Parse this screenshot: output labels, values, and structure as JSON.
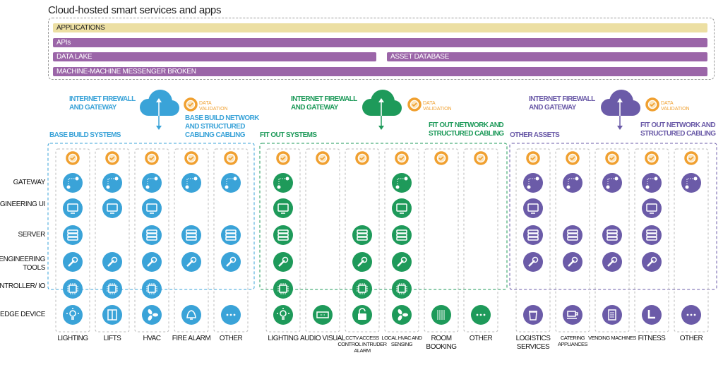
{
  "title": "Cloud-hosted smart services and apps",
  "bars": {
    "applications": "APPLICATIONS",
    "apis": "APIs",
    "data_lake": "DATA LAKE",
    "asset_database": "ASSET DATABASE",
    "messenger": "MACHINE-MACHINE MESSENGER BROKEN"
  },
  "colors": {
    "blue": "#3aa3d8",
    "green": "#1e9a5a",
    "purple": "#6b5ba8",
    "validation": "#f0a030",
    "applications_bar": "#ecdfa3",
    "platform_bar": "#9b65a8"
  },
  "data_validation": "DATA VALIDATION",
  "row_labels": [
    "GATEWAY",
    "ENGINEERING UI",
    "SERVER",
    "ENGINEERING TOOLS",
    "CONTROLLER/ IO",
    "EDGE DEVICE"
  ],
  "groups": [
    {
      "title": "BASE BUILD SYSTEMS",
      "gateway_label": "INTERNET FIREWALL AND GATEWAY",
      "network_label": "BASE BUILD NETWORK AND STRUCTURED CABLING CABLING",
      "color": "#3aa3d8",
      "columns": [
        {
          "label": "LIGHTING",
          "edge_icon": "lightbulb-icon",
          "layers": [
            1,
            1,
            1,
            1,
            1,
            1
          ]
        },
        {
          "label": "LIFTS",
          "edge_icon": "lift-icon",
          "layers": [
            1,
            1,
            0,
            1,
            1,
            1
          ]
        },
        {
          "label": "HVAC",
          "edge_icon": "fan-icon",
          "layers": [
            1,
            1,
            1,
            1,
            1,
            1
          ]
        },
        {
          "label": "FIRE ALARM",
          "edge_icon": "bell-icon",
          "layers": [
            1,
            0,
            1,
            1,
            0,
            1
          ]
        },
        {
          "label": "OTHER",
          "edge_icon": "more-icon",
          "layers": [
            1,
            0,
            1,
            1,
            0,
            1
          ]
        }
      ]
    },
    {
      "title": "FIT OUT SYSTEMS",
      "gateway_label": "INTERNET FIREWALL AND GATEWAY",
      "network_label": "FIT OUT NETWORK AND STRUCTURED CABLING",
      "color": "#1e9a5a",
      "columns": [
        {
          "label": "LIGHTING",
          "edge_icon": "lightbulb-icon",
          "layers": [
            1,
            1,
            1,
            1,
            1,
            1
          ]
        },
        {
          "label": "AUDIO VISUAL",
          "edge_icon": "av-panel-icon",
          "layers": [
            0,
            0,
            0,
            0,
            0,
            1
          ]
        },
        {
          "label": "CCTV ACCESS CONTROL INTRUDER ALARM",
          "edge_icon": "lock-icon",
          "layers": [
            0,
            0,
            1,
            1,
            1,
            1
          ],
          "small": true
        },
        {
          "label": "LOCAL HVAC AND SENSING",
          "edge_icon": "fan-icon",
          "layers": [
            1,
            1,
            1,
            1,
            1,
            1
          ],
          "small": true
        },
        {
          "label": "ROOM BOOKING",
          "edge_icon": "sliders-icon",
          "layers": [
            0,
            0,
            0,
            0,
            0,
            1
          ]
        },
        {
          "label": "OTHER",
          "edge_icon": "more-icon",
          "layers": [
            0,
            0,
            0,
            0,
            0,
            1
          ]
        }
      ]
    },
    {
      "title": "OTHER ASSETS",
      "gateway_label": "INTERNET FIREWALL AND GATEWAY",
      "network_label": "FIT OUT NETWORK AND STRUCTURED CABLING",
      "color": "#6b5ba8",
      "columns": [
        {
          "label": "LOGISTICS SERVICES",
          "edge_icon": "bin-icon",
          "layers": [
            1,
            1,
            1,
            1,
            0,
            1
          ]
        },
        {
          "label": "CATERING APPLIANCES",
          "edge_icon": "cup-icon",
          "layers": [
            1,
            0,
            1,
            1,
            0,
            1
          ],
          "small": true
        },
        {
          "label": "VENDING MACHINES",
          "edge_icon": "vending-icon",
          "layers": [
            1,
            0,
            1,
            1,
            0,
            1
          ],
          "small": true
        },
        {
          "label": "FITNESS",
          "edge_icon": "treadmill-icon",
          "layers": [
            1,
            1,
            1,
            1,
            0,
            1
          ]
        },
        {
          "label": "OTHER",
          "edge_icon": "more-icon",
          "layers": [
            1,
            0,
            0,
            0,
            0,
            1
          ]
        }
      ]
    }
  ]
}
